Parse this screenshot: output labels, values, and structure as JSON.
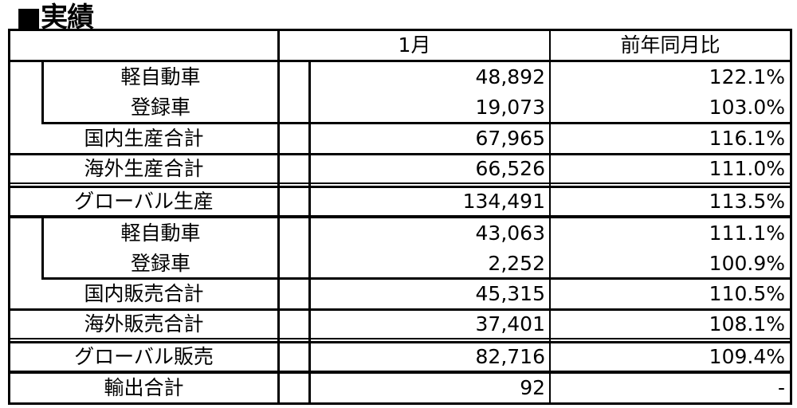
{
  "title": "■実績",
  "header": {
    "label": "",
    "month": "1月",
    "ratio": "前年同月比"
  },
  "rows": [
    {
      "label": "軽自動車",
      "value": "48,892",
      "ratio": "122.1%"
    },
    {
      "label": "登録車",
      "value": "19,073",
      "ratio": "103.0%"
    },
    {
      "label": "国内生産合計",
      "value": "67,965",
      "ratio": "116.1%"
    },
    {
      "label": "海外生産合計",
      "value": "66,526",
      "ratio": "111.0%"
    },
    {
      "label": "グローバル生産",
      "value": "134,491",
      "ratio": "113.5%"
    },
    {
      "label": "軽自動車",
      "value": "43,063",
      "ratio": "111.1%"
    },
    {
      "label": "登録車",
      "value": "2,252",
      "ratio": "100.9%"
    },
    {
      "label": "国内販売合計",
      "value": "45,315",
      "ratio": "110.5%"
    },
    {
      "label": "海外販売合計",
      "value": "37,401",
      "ratio": "108.1%"
    },
    {
      "label": "グローバル販売",
      "value": "82,716",
      "ratio": "109.4%"
    },
    {
      "label": "輸出合計",
      "value": "92",
      "ratio": "-"
    }
  ]
}
